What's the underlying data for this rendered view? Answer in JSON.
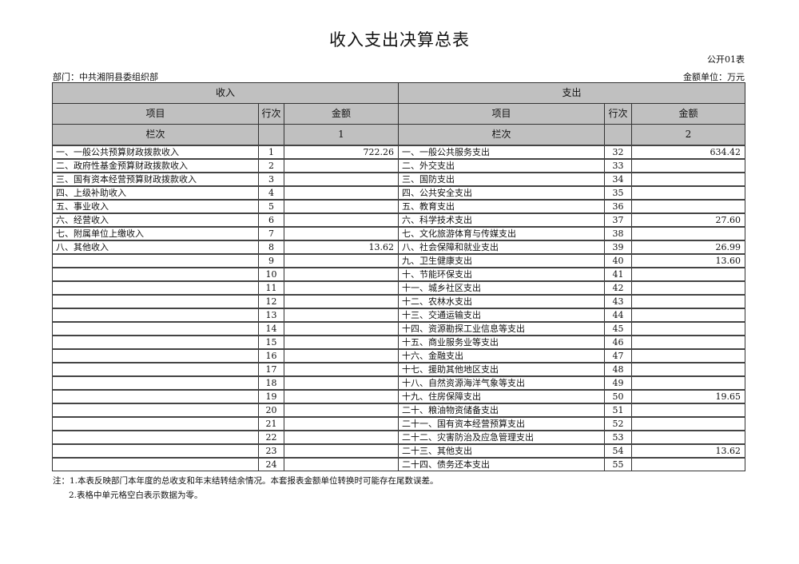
{
  "title": "收入支出决算总表",
  "form_no": "公开01表",
  "department": "部门：中共湘阴县委组织部",
  "unit": "金额单位：万元",
  "header": {
    "income": "收入",
    "expense": "支出",
    "item": "项目",
    "line_no": "行次",
    "amount": "金额",
    "column_label": "栏次",
    "income_col": "1",
    "expense_col": "2"
  },
  "rows": [
    {
      "in_item": "一、一般公共预算财政拨款收入",
      "in_no": "1",
      "in_amt": "722.26",
      "ex_item": "一、一般公共服务支出",
      "ex_no": "32",
      "ex_amt": "634.42"
    },
    {
      "in_item": "二、政府性基金预算财政拨款收入",
      "in_no": "2",
      "in_amt": "",
      "ex_item": "二、外交支出",
      "ex_no": "33",
      "ex_amt": ""
    },
    {
      "in_item": "三、国有资本经营预算财政拨款收入",
      "in_no": "3",
      "in_amt": "",
      "ex_item": "三、国防支出",
      "ex_no": "34",
      "ex_amt": ""
    },
    {
      "in_item": "四、上级补助收入",
      "in_no": "4",
      "in_amt": "",
      "ex_item": "四、公共安全支出",
      "ex_no": "35",
      "ex_amt": ""
    },
    {
      "in_item": "五、事业收入",
      "in_no": "5",
      "in_amt": "",
      "ex_item": "五、教育支出",
      "ex_no": "36",
      "ex_amt": ""
    },
    {
      "in_item": "六、经营收入",
      "in_no": "6",
      "in_amt": "",
      "ex_item": "六、科学技术支出",
      "ex_no": "37",
      "ex_amt": "27.60"
    },
    {
      "in_item": "七、附属单位上缴收入",
      "in_no": "7",
      "in_amt": "",
      "ex_item": "七、文化旅游体育与传媒支出",
      "ex_no": "38",
      "ex_amt": ""
    },
    {
      "in_item": "八、其他收入",
      "in_no": "8",
      "in_amt": "13.62",
      "ex_item": "八、社会保障和就业支出",
      "ex_no": "39",
      "ex_amt": "26.99"
    },
    {
      "in_item": "",
      "in_no": "9",
      "in_amt": "",
      "ex_item": "九、卫生健康支出",
      "ex_no": "40",
      "ex_amt": "13.60"
    },
    {
      "in_item": "",
      "in_no": "10",
      "in_amt": "",
      "ex_item": "十、节能环保支出",
      "ex_no": "41",
      "ex_amt": ""
    },
    {
      "in_item": "",
      "in_no": "11",
      "in_amt": "",
      "ex_item": "十一、城乡社区支出",
      "ex_no": "42",
      "ex_amt": ""
    },
    {
      "in_item": "",
      "in_no": "12",
      "in_amt": "",
      "ex_item": "十二、农林水支出",
      "ex_no": "43",
      "ex_amt": ""
    },
    {
      "in_item": "",
      "in_no": "13",
      "in_amt": "",
      "ex_item": "十三、交通运输支出",
      "ex_no": "44",
      "ex_amt": ""
    },
    {
      "in_item": "",
      "in_no": "14",
      "in_amt": "",
      "ex_item": "十四、资源勘探工业信息等支出",
      "ex_no": "45",
      "ex_amt": ""
    },
    {
      "in_item": "",
      "in_no": "15",
      "in_amt": "",
      "ex_item": "十五、商业服务业等支出",
      "ex_no": "46",
      "ex_amt": ""
    },
    {
      "in_item": "",
      "in_no": "16",
      "in_amt": "",
      "ex_item": "十六、金融支出",
      "ex_no": "47",
      "ex_amt": ""
    },
    {
      "in_item": "",
      "in_no": "17",
      "in_amt": "",
      "ex_item": "十七、援助其他地区支出",
      "ex_no": "48",
      "ex_amt": ""
    },
    {
      "in_item": "",
      "in_no": "18",
      "in_amt": "",
      "ex_item": "十八、自然资源海洋气象等支出",
      "ex_no": "49",
      "ex_amt": ""
    },
    {
      "in_item": "",
      "in_no": "19",
      "in_amt": "",
      "ex_item": "十九、住房保障支出",
      "ex_no": "50",
      "ex_amt": "19.65"
    },
    {
      "in_item": "",
      "in_no": "20",
      "in_amt": "",
      "ex_item": "二十、粮油物资储备支出",
      "ex_no": "51",
      "ex_amt": ""
    },
    {
      "in_item": "",
      "in_no": "21",
      "in_amt": "",
      "ex_item": "二十一、国有资本经营预算支出",
      "ex_no": "52",
      "ex_amt": ""
    },
    {
      "in_item": "",
      "in_no": "22",
      "in_amt": "",
      "ex_item": "二十二、灾害防治及应急管理支出",
      "ex_no": "53",
      "ex_amt": ""
    },
    {
      "in_item": "",
      "in_no": "23",
      "in_amt": "",
      "ex_item": "二十三、其他支出",
      "ex_no": "54",
      "ex_amt": "13.62"
    },
    {
      "in_item": "",
      "in_no": "24",
      "in_amt": "",
      "ex_item": "二十四、债务还本支出",
      "ex_no": "55",
      "ex_amt": ""
    }
  ],
  "notes": [
    "注：1.本表反映部门本年度的总收支和年末结转结余情况。本套报表金额单位转换时可能存在尾数误差。",
    "2.表格中单元格空白表示数据为零。"
  ]
}
